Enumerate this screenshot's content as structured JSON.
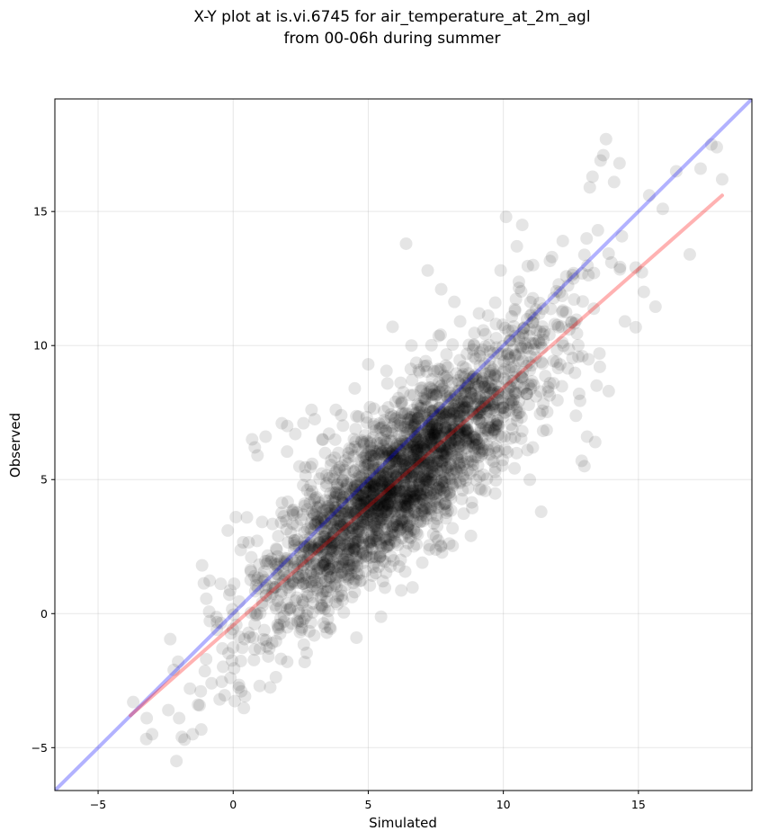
{
  "chart_data": {
    "type": "scatter",
    "title": [
      "X-Y plot at is.vi.6745 for air_temperature_at_2m_agl",
      "from 00-06h during summer"
    ],
    "xlabel": "Simulated",
    "ylabel": "Observed",
    "xlim": [
      -6.6,
      19.2
    ],
    "ylim": [
      -6.6,
      19.2
    ],
    "xticks": [
      -5,
      0,
      5,
      10,
      15
    ],
    "yticks": [
      -5,
      0,
      5,
      10,
      15
    ],
    "xtick_labels": [
      "−5",
      "0",
      "5",
      "10",
      "15"
    ],
    "ytick_labels": [
      "−5",
      "0",
      "5",
      "10",
      "15"
    ],
    "grid": true,
    "scatter": {
      "color": "#000000",
      "alpha": 0.1,
      "distribution": {
        "count": 2600,
        "x_range": [
          -3.8,
          18.2
        ],
        "regression_slope": 0.88,
        "regression_intercept": -0.45,
        "residual_spread": 1.45
      },
      "points": [
        [
          -3.7,
          -3.3
        ],
        [
          -3.2,
          -3.9
        ],
        [
          -3.0,
          -4.5
        ],
        [
          -2.4,
          -3.6
        ],
        [
          -2.2,
          -2.1
        ],
        [
          -2.0,
          -3.9
        ],
        [
          -2.1,
          -5.5
        ],
        [
          -1.9,
          -4.6
        ],
        [
          -1.8,
          -4.7
        ],
        [
          -1.6,
          -2.8
        ],
        [
          -1.5,
          -4.5
        ],
        [
          -1.3,
          -3.4
        ],
        [
          -1.2,
          -2.9
        ],
        [
          -1.0,
          -1.7
        ],
        [
          -0.8,
          -2.6
        ],
        [
          -0.6,
          -0.6
        ],
        [
          -0.5,
          -3.2
        ],
        [
          -0.4,
          -1.3
        ],
        [
          -0.2,
          3.1
        ],
        [
          -0.1,
          -2.4
        ],
        [
          0.1,
          3.6
        ],
        [
          0.3,
          -2.9
        ],
        [
          0.7,
          6.5
        ],
        [
          0.8,
          6.2
        ],
        [
          0.9,
          5.9
        ],
        [
          1.2,
          6.6
        ],
        [
          1.8,
          7.1
        ],
        [
          2.0,
          7.0
        ],
        [
          2.3,
          6.7
        ],
        [
          2.6,
          7.1
        ],
        [
          2.9,
          7.6
        ],
        [
          3.3,
          6.5
        ],
        [
          3.8,
          7.6
        ],
        [
          4.0,
          7.4
        ],
        [
          4.5,
          8.4
        ],
        [
          5.0,
          9.3
        ],
        [
          5.9,
          10.7
        ],
        [
          6.4,
          13.8
        ],
        [
          6.6,
          10.0
        ],
        [
          7.2,
          12.8
        ],
        [
          7.7,
          12.1
        ],
        [
          8.4,
          10.9
        ],
        [
          9.1,
          11.2
        ],
        [
          9.7,
          11.6
        ],
        [
          9.9,
          12.8
        ],
        [
          10.1,
          14.8
        ],
        [
          10.5,
          13.7
        ],
        [
          10.7,
          14.5
        ],
        [
          11.1,
          13.0
        ],
        [
          11.4,
          3.8
        ],
        [
          11.8,
          13.3
        ],
        [
          12.2,
          13.9
        ],
        [
          12.6,
          12.7
        ],
        [
          12.9,
          5.7
        ],
        [
          13.0,
          5.5
        ],
        [
          13.1,
          6.6
        ],
        [
          13.4,
          6.4
        ],
        [
          13.2,
          15.9
        ],
        [
          13.3,
          16.3
        ],
        [
          13.5,
          14.3
        ],
        [
          13.6,
          16.9
        ],
        [
          13.7,
          17.1
        ],
        [
          13.8,
          17.7
        ],
        [
          13.9,
          8.3
        ],
        [
          14.1,
          16.1
        ],
        [
          14.3,
          16.8
        ],
        [
          14.0,
          13.1
        ],
        [
          14.5,
          10.9
        ],
        [
          15.2,
          12.0
        ],
        [
          15.4,
          15.6
        ],
        [
          15.9,
          15.1
        ],
        [
          16.4,
          16.5
        ],
        [
          16.9,
          13.4
        ],
        [
          17.3,
          16.6
        ],
        [
          17.7,
          17.5
        ],
        [
          17.9,
          17.4
        ],
        [
          18.1,
          16.2
        ],
        [
          6.2,
          2.0
        ],
        [
          7.0,
          1.9
        ],
        [
          8.8,
          2.9
        ],
        [
          4.5,
          0.8
        ],
        [
          3.4,
          -0.5
        ],
        [
          2.0,
          -1.8
        ],
        [
          1.3,
          -1.6
        ]
      ]
    },
    "series": [
      {
        "label": "1:1 line",
        "color": "#0000ff",
        "alpha": 0.3,
        "x": [
          -6.6,
          19.2
        ],
        "y": [
          -6.6,
          19.2
        ]
      },
      {
        "label": "regression fit",
        "color": "#ff0000",
        "alpha": 0.3,
        "x": [
          -3.8,
          18.1
        ],
        "y": [
          -3.8,
          15.6
        ]
      }
    ]
  }
}
